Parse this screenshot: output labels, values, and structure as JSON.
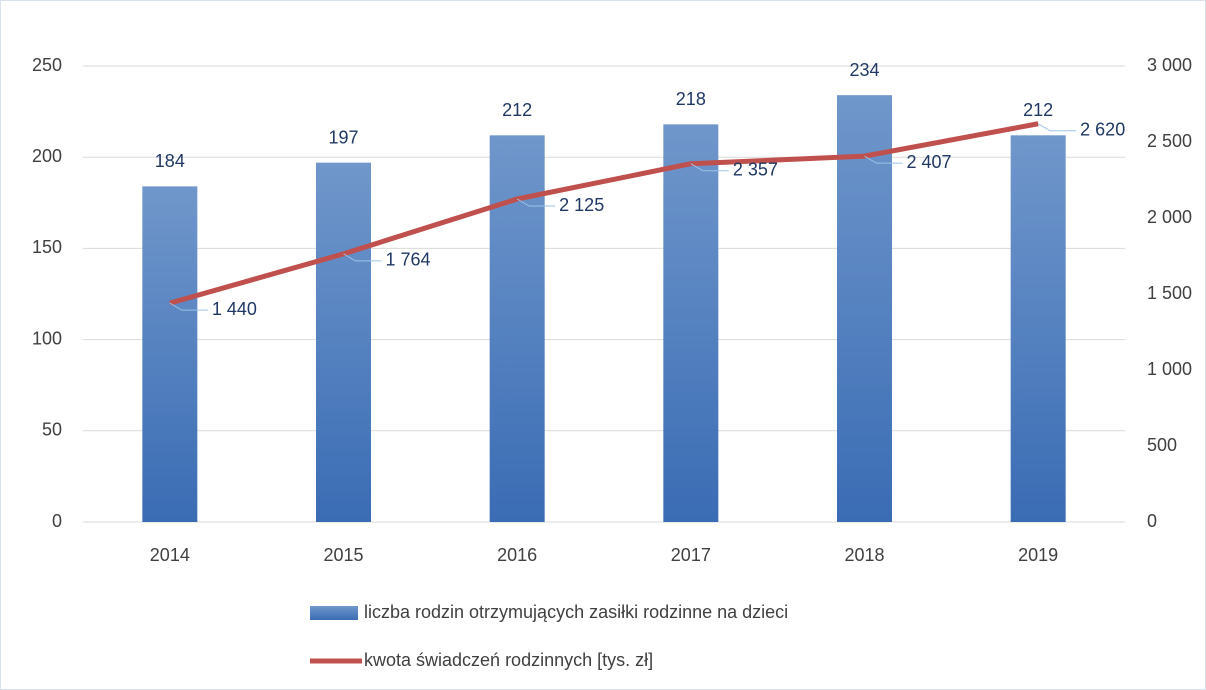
{
  "chart_data": {
    "type": "bar",
    "categories": [
      "2014",
      "2015",
      "2016",
      "2017",
      "2018",
      "2019"
    ],
    "series": [
      {
        "name": "liczba rodzin otrzymujących zasiłki rodzinne na dzieci",
        "color": "#4a7bbf",
        "values": [
          184,
          197,
          212,
          218,
          234,
          212
        ]
      },
      {
        "name": "kwota świadczeń rodzinnych [tys. zł]",
        "type": "line",
        "axis": "y2",
        "color": "#c0504d",
        "values": [
          1440,
          1764,
          2125,
          2357,
          2407,
          2620
        ],
        "value_labels": [
          "1 440",
          "1 764",
          "2 125",
          "2 357",
          "2 407",
          "2 620"
        ]
      }
    ],
    "ylim": [
      0,
      250
    ],
    "yticks": [
      0,
      50,
      100,
      150,
      200,
      250
    ],
    "y2lim": [
      0,
      3000
    ],
    "y2ticks": [
      0,
      500,
      {
        "value": 1000,
        "label": "1 000"
      },
      {
        "value": 1500,
        "label": "1 500"
      },
      {
        "value": 2000,
        "label": "2 000"
      },
      {
        "value": 2500,
        "label": "2 500"
      },
      {
        "value": 3000,
        "label": "3 000"
      }
    ],
    "grid": true,
    "legend": "bottom"
  }
}
